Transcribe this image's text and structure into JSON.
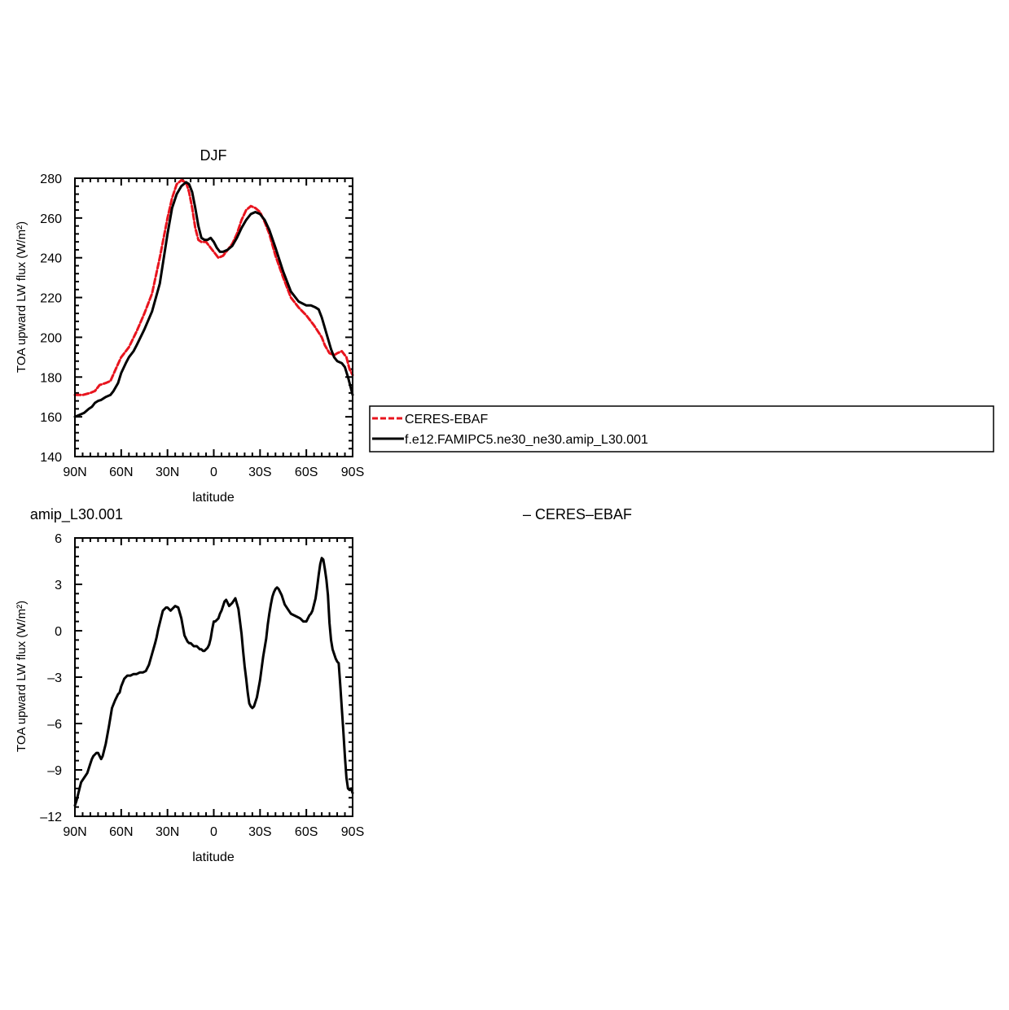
{
  "chart_data": [
    {
      "type": "line",
      "title": "DJF",
      "xlabel": "latitude",
      "ylabel": "TOA upward LW flux (W/m²)",
      "xlim": [
        90,
        -90
      ],
      "ylim": [
        140,
        280
      ],
      "xticks": [
        {
          "value": 90,
          "label": "90N"
        },
        {
          "value": 60,
          "label": "60N"
        },
        {
          "value": 30,
          "label": "30N"
        },
        {
          "value": 0,
          "label": "0"
        },
        {
          "value": -30,
          "label": "30S"
        },
        {
          "value": -60,
          "label": "60S"
        },
        {
          "value": -90,
          "label": "90S"
        }
      ],
      "yticks": [
        {
          "value": 140,
          "label": "140"
        },
        {
          "value": 160,
          "label": "160"
        },
        {
          "value": 180,
          "label": "180"
        },
        {
          "value": 200,
          "label": "200"
        },
        {
          "value": 220,
          "label": "220"
        },
        {
          "value": 240,
          "label": "240"
        },
        {
          "value": 260,
          "label": "260"
        },
        {
          "value": 280,
          "label": "280"
        }
      ],
      "legend": {
        "placement": "right",
        "entries": [
          "CERES-EBAF",
          "f.e12.FAMIPC5.ne30_ne30.amip_L30.001"
        ]
      },
      "series": [
        {
          "name": "CERES-EBAF",
          "color": "#e8141e",
          "dash": "dashed",
          "x": [
            90,
            85,
            80,
            77,
            74,
            70,
            67,
            63,
            60,
            55,
            50,
            45,
            40,
            35,
            30,
            27,
            24,
            21,
            18,
            16,
            14,
            12,
            10,
            8,
            5,
            3,
            0,
            -3,
            -6,
            -9,
            -12,
            -15,
            -18,
            -21,
            -24,
            -27,
            -30,
            -33,
            -36,
            -40,
            -45,
            -50,
            -55,
            -60,
            -65,
            -70,
            -72,
            -75,
            -78,
            -80,
            -83,
            -86,
            -88,
            -90
          ],
          "y": [
            171,
            171,
            172,
            173,
            176,
            177,
            178,
            185,
            190,
            195,
            203,
            212,
            222,
            240,
            260,
            270,
            277,
            279,
            278,
            273,
            265,
            255,
            249,
            248,
            248,
            246,
            243,
            240,
            241,
            244,
            247,
            252,
            259,
            264,
            266,
            265,
            263,
            258,
            252,
            241,
            230,
            220,
            215,
            211,
            206,
            200,
            196,
            192,
            191,
            192,
            193,
            190,
            184,
            181
          ]
        },
        {
          "name": "f.e12.FAMIPC5.ne30_ne30.amip_L30.001",
          "color": "#000000",
          "dash": "solid",
          "x": [
            90,
            87,
            84,
            81,
            79,
            77,
            75,
            73,
            70,
            67,
            65,
            62,
            60,
            57,
            55,
            52,
            50,
            45,
            40,
            35,
            30,
            27,
            24,
            21,
            18,
            16,
            14,
            12,
            10,
            8,
            6,
            4,
            2,
            0,
            -2,
            -4,
            -6,
            -9,
            -12,
            -15,
            -18,
            -21,
            -24,
            -27,
            -30,
            -33,
            -36,
            -40,
            -45,
            -50,
            -55,
            -60,
            -63,
            -66,
            -68,
            -70,
            -73,
            -76,
            -78,
            -80,
            -83,
            -85,
            -87,
            -89,
            -90
          ],
          "y": [
            160,
            161,
            162,
            164,
            165,
            167,
            168,
            168.5,
            170,
            171,
            173,
            177,
            182,
            187,
            190,
            193,
            196,
            204,
            213,
            227,
            252,
            265,
            272,
            276,
            278,
            277,
            273,
            265,
            256,
            250,
            249,
            249,
            250,
            248,
            245,
            243,
            243,
            244,
            246,
            250,
            255,
            259,
            262,
            263,
            262,
            259,
            254,
            245,
            233,
            223,
            218,
            216,
            216,
            215,
            214,
            210,
            202,
            194,
            190,
            188,
            187,
            185,
            180,
            174,
            171
          ]
        }
      ]
    },
    {
      "type": "line",
      "title": "amip_L30.001",
      "title_right": "– CERES–EBAF",
      "xlabel": "latitude",
      "ylabel": "TOA upward LW flux (W/m²)",
      "xlim": [
        90,
        -90
      ],
      "ylim": [
        -12,
        6
      ],
      "xticks": [
        {
          "value": 90,
          "label": "90N"
        },
        {
          "value": 60,
          "label": "60N"
        },
        {
          "value": 30,
          "label": "30N"
        },
        {
          "value": 0,
          "label": "0"
        },
        {
          "value": -30,
          "label": "30S"
        },
        {
          "value": -60,
          "label": "60S"
        },
        {
          "value": -90,
          "label": "90S"
        }
      ],
      "yticks": [
        {
          "value": 6,
          "label": "6"
        },
        {
          "value": 3,
          "label": "3"
        },
        {
          "value": 0,
          "label": "0"
        },
        {
          "value": -3,
          "label": "–3"
        },
        {
          "value": -6,
          "label": "–6"
        },
        {
          "value": -9,
          "label": "–9"
        },
        {
          "value": -12,
          "label": "–12"
        }
      ],
      "series": [
        {
          "color": "#000000",
          "dash": "solid",
          "x": [
            90,
            89,
            88,
            87,
            86,
            84,
            82,
            80,
            79,
            78,
            77,
            76,
            75,
            74,
            73,
            72,
            71,
            70,
            68,
            66,
            64,
            62,
            61,
            60,
            58,
            56,
            54,
            52,
            50,
            48,
            46,
            44,
            42,
            40,
            38,
            37,
            36,
            35,
            34,
            33,
            32,
            31,
            30,
            29,
            28,
            27,
            25,
            23,
            21,
            19,
            17,
            16,
            15,
            14,
            13,
            12,
            11,
            10,
            9,
            8,
            7,
            6,
            5,
            4,
            3,
            2,
            1,
            0,
            -1,
            -2,
            -3,
            -4,
            -5,
            -6,
            -7,
            -8,
            -9,
            -10,
            -12,
            -14,
            -16,
            -18,
            -19,
            -20,
            -21,
            -22,
            -23,
            -24,
            -25,
            -26,
            -28,
            -30,
            -32,
            -34,
            -35,
            -36,
            -37,
            -38,
            -39,
            -40,
            -41,
            -42,
            -44,
            -46,
            -48,
            -50,
            -52,
            -54,
            -56,
            -58,
            -60,
            -61,
            -62,
            -63,
            -64,
            -65,
            -66,
            -67,
            -68,
            -69,
            -70,
            -71,
            -72,
            -73,
            -74,
            -75,
            -76,
            -77,
            -78,
            -79,
            -80,
            -81,
            -82,
            -83,
            -84,
            -85,
            -86,
            -87,
            -88,
            -89,
            -90
          ],
          "y": [
            -11.3,
            -11,
            -10.6,
            -10.2,
            -9.8,
            -9.5,
            -9.2,
            -8.6,
            -8.3,
            -8.1,
            -8,
            -7.9,
            -7.9,
            -8.1,
            -8.3,
            -8.1,
            -7.7,
            -7.3,
            -6.2,
            -5,
            -4.5,
            -4.1,
            -4,
            -3.6,
            -3.1,
            -2.9,
            -2.9,
            -2.8,
            -2.8,
            -2.7,
            -2.7,
            -2.6,
            -2.2,
            -1.5,
            -0.8,
            -0.4,
            0.1,
            0.5,
            0.9,
            1.3,
            1.4,
            1.5,
            1.5,
            1.4,
            1.3,
            1.4,
            1.6,
            1.5,
            0.8,
            -0.3,
            -0.7,
            -0.8,
            -0.8,
            -0.9,
            -1,
            -1,
            -1,
            -1.1,
            -1.2,
            -1.2,
            -1.3,
            -1.3,
            -1.2,
            -1.1,
            -0.9,
            -0.5,
            0.1,
            0.6,
            0.6,
            0.7,
            0.8,
            1.1,
            1.3,
            1.6,
            1.9,
            2,
            1.8,
            1.6,
            1.8,
            2.1,
            1.4,
            -0.2,
            -1.3,
            -2.3,
            -3.1,
            -4,
            -4.7,
            -4.9,
            -5,
            -4.9,
            -4.3,
            -3.2,
            -1.7,
            -0.5,
            0.4,
            1.1,
            1.7,
            2.2,
            2.5,
            2.7,
            2.8,
            2.7,
            2.3,
            1.7,
            1.4,
            1.1,
            1,
            0.9,
            0.8,
            0.6,
            0.6,
            0.8,
            1,
            1.1,
            1.3,
            1.7,
            2.1,
            2.8,
            3.6,
            4.3,
            4.7,
            4.6,
            4,
            3.3,
            2.3,
            0.5,
            -0.6,
            -1.2,
            -1.5,
            -1.8,
            -2,
            -2.1,
            -3.5,
            -5,
            -6.5,
            -8.1,
            -9.5,
            -10.2,
            -10.3,
            -10.2,
            -10.5
          ]
        }
      ]
    }
  ]
}
